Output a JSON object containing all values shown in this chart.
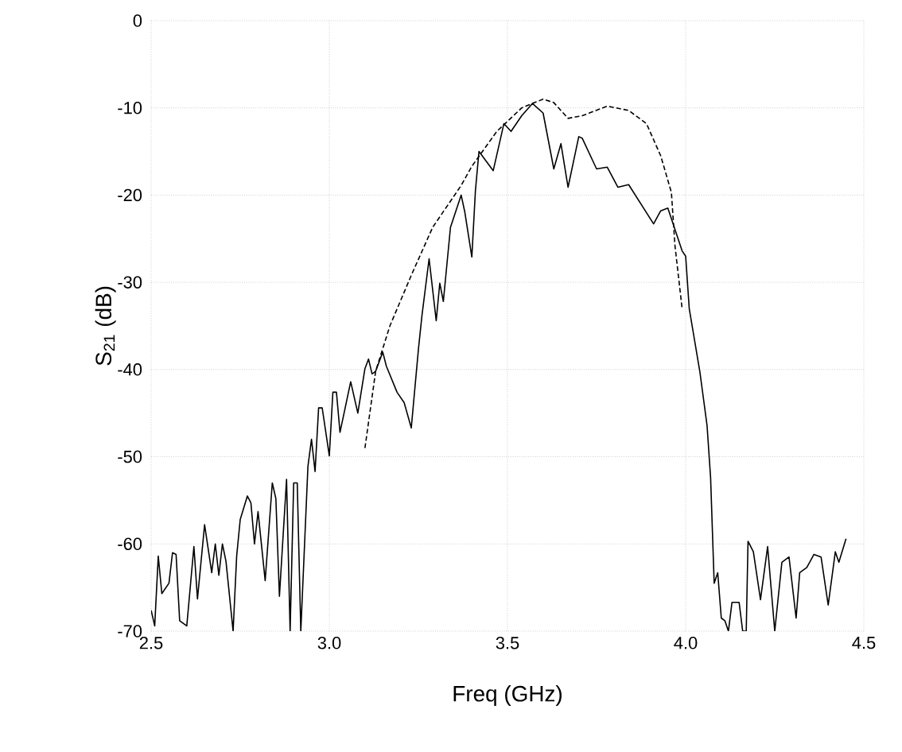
{
  "chart_data": {
    "type": "line",
    "xlabel": "Freq (GHz)",
    "ylabel": "S$_{21}$ (dB)",
    "xlim": [
      2.5,
      4.5
    ],
    "ylim": [
      -70,
      0
    ],
    "xticks": [
      {
        "value": 2.5,
        "label": "2.5"
      },
      {
        "value": 3.0,
        "label": "3.0"
      },
      {
        "value": 3.5,
        "label": "3.5"
      },
      {
        "value": 4.0,
        "label": "4.0"
      },
      {
        "value": 4.5,
        "label": "4.5"
      }
    ],
    "yticks": [
      -70,
      -60,
      -50,
      -40,
      -30,
      -20,
      -10,
      0
    ],
    "grid": true,
    "marker": "none",
    "series": [
      {
        "color": "#000000",
        "line_style": "solid",
        "x": [
          2.5,
          2.51,
          2.52,
          2.53,
          2.55,
          2.56,
          2.57,
          2.58,
          2.6,
          2.62,
          2.63,
          2.65,
          2.67,
          2.68,
          2.69,
          2.7,
          2.71,
          2.73,
          2.74,
          2.75,
          2.77,
          2.78,
          2.79,
          2.8,
          2.82,
          2.84,
          2.85,
          2.86,
          2.88,
          2.89,
          2.9,
          2.91,
          2.92,
          2.94,
          2.95,
          2.96,
          2.97,
          2.98,
          3.0,
          3.01,
          3.02,
          3.03,
          3.06,
          3.08,
          3.1,
          3.11,
          3.12,
          3.13,
          3.15,
          3.16,
          3.19,
          3.21,
          3.23,
          3.25,
          3.26,
          3.28,
          3.3,
          3.31,
          3.32,
          3.34,
          3.37,
          3.38,
          3.4,
          3.41,
          3.42,
          3.46,
          3.49,
          3.51,
          3.54,
          3.57,
          3.6,
          3.63,
          3.65,
          3.67,
          3.7,
          3.71,
          3.75,
          3.78,
          3.81,
          3.84,
          3.91,
          3.93,
          3.95,
          3.99,
          4.0,
          4.01,
          4.04,
          4.06,
          4.07,
          4.08,
          4.09,
          4.1,
          4.11,
          4.12,
          4.13,
          4.15,
          4.16,
          4.17,
          4.175,
          4.19,
          4.21,
          4.23,
          4.25,
          4.27,
          4.29,
          4.31,
          4.32,
          4.34,
          4.36,
          4.38,
          4.4,
          4.42,
          4.43,
          4.45
        ],
        "values": [
          -67.6,
          -69.4,
          -61.4,
          -65.7,
          -64.5,
          -61,
          -61.2,
          -68.8,
          -69.4,
          -60.3,
          -66.3,
          -57.8,
          -63.3,
          -60,
          -63.6,
          -60,
          -62,
          -70,
          -61.4,
          -57.2,
          -54.5,
          -55.3,
          -60,
          -56.3,
          -64.2,
          -53,
          -54.8,
          -66,
          -52.6,
          -70,
          -53,
          -53,
          -70,
          -51.1,
          -48,
          -51.7,
          -44.4,
          -44.4,
          -49.9,
          -42.6,
          -42.6,
          -47.2,
          -41.4,
          -45,
          -39.9,
          -38.8,
          -40.5,
          -40.2,
          -38,
          -39.6,
          -42.6,
          -43.8,
          -46.7,
          -37.7,
          -33.8,
          -27.3,
          -34.4,
          -30.1,
          -32.2,
          -23.7,
          -20,
          -21.9,
          -27.1,
          -19.5,
          -15,
          -17.2,
          -11.8,
          -12.7,
          -10.9,
          -9.5,
          -10.6,
          -17,
          -14.1,
          -19.1,
          -13.3,
          -13.5,
          -17,
          -16.8,
          -19.1,
          -18.8,
          -23.3,
          -21.8,
          -21.5,
          -26.4,
          -27,
          -33,
          -40.3,
          -46.4,
          -52.4,
          -64.5,
          -63.3,
          -68.5,
          -68.8,
          -70,
          -66.7,
          -66.7,
          -70,
          -70,
          -59.7,
          -60.9,
          -66.4,
          -60.3,
          -70,
          -62.1,
          -61.5,
          -68.5,
          -63.3,
          -62.7,
          -61.2,
          -61.5,
          -67,
          -60.9,
          -62.1,
          -59.4
        ]
      },
      {
        "color": "#000000",
        "line_style": "dashed",
        "x": [
          3.1,
          3.13,
          3.17,
          3.23,
          3.29,
          3.37,
          3.4,
          3.47,
          3.54,
          3.6,
          3.63,
          3.67,
          3.71,
          3.78,
          3.84,
          3.89,
          3.93,
          3.96,
          3.97,
          3.99
        ],
        "values": [
          -49,
          -40.2,
          -35,
          -29.2,
          -23.7,
          -18.9,
          -16.7,
          -12.7,
          -10,
          -9,
          -9.4,
          -11.2,
          -10.9,
          -9.8,
          -10.3,
          -11.8,
          -15.5,
          -19.7,
          -25.8,
          -33
        ]
      }
    ]
  }
}
